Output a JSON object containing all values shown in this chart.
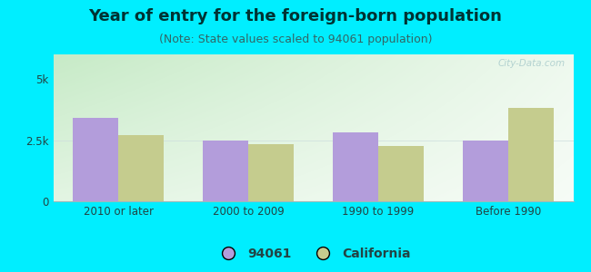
{
  "title": "Year of entry for the foreign-born population",
  "subtitle": "(Note: State values scaled to 94061 population)",
  "categories": [
    "2010 or later",
    "2000 to 2009",
    "1990 to 1999",
    "Before 1990"
  ],
  "values_94061": [
    3400,
    2500,
    2800,
    2500
  ],
  "values_california": [
    2700,
    2350,
    2250,
    3800
  ],
  "bar_color_94061": "#b39ddb",
  "bar_color_california": "#c5cc8e",
  "background_outer": "#00eeff",
  "background_inner_topleft": "#c8e6c9",
  "background_inner_topright": "#e8f5e9",
  "background_inner_bottom": "#f5fff5",
  "ylim": [
    0,
    6000
  ],
  "ytick_labels": [
    "0",
    "2.5k",
    "5k"
  ],
  "ytick_values": [
    0,
    2500,
    5000
  ],
  "bar_width": 0.35,
  "legend_label_94061": "94061",
  "legend_label_california": "California",
  "title_fontsize": 13,
  "subtitle_fontsize": 9,
  "tick_fontsize": 8.5,
  "legend_fontsize": 10,
  "title_color": "#003333",
  "subtitle_color": "#336666",
  "tick_color": "#224444",
  "watermark_color": "#aacccc"
}
